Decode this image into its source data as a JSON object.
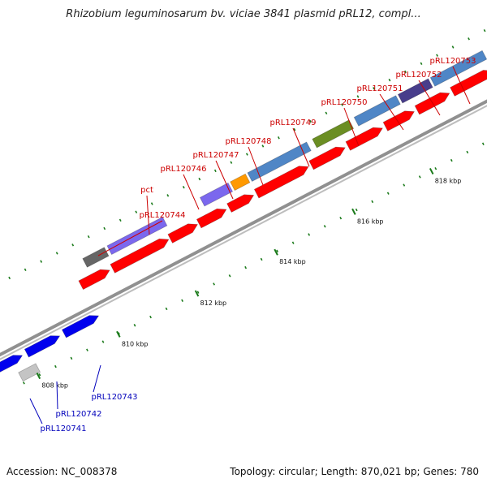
{
  "title": "Rhizobium leguminosarum bv. viciae 3841 plasmid pRL12, compl...",
  "footer": {
    "accession": "Accession: NC_008378",
    "topology": "Topology: circular; Length: 870,021 bp; Genes: 780"
  },
  "colors": {
    "backbone": "#909090",
    "cds": "#ff0000",
    "reverse_cds": "#0000ee",
    "forward_label": "#cc0000",
    "reverse_label": "#0000bb",
    "tick": "#1a7a1a"
  },
  "scale_labels": [
    "808 kbp",
    "810 kbp",
    "812 kbp",
    "814 kbp",
    "816 kbp",
    "818 kbp"
  ],
  "forward_genes": [
    "pRL120744",
    "pct",
    "pRL120746",
    "pRL120747",
    "pRL120748",
    "pRL120749",
    "pRL120750",
    "pRL120751",
    "pRL120752",
    "pRL120753"
  ],
  "reverse_genes": [
    "pRL120741",
    "pRL120742",
    "pRL120743"
  ]
}
